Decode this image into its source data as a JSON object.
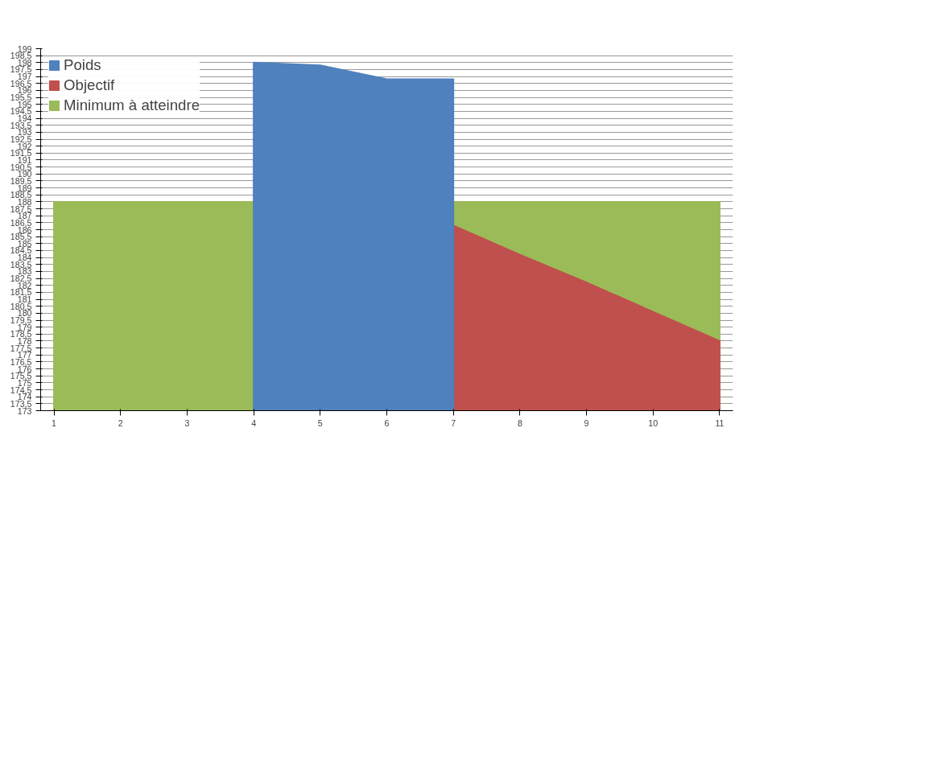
{
  "chart_data": {
    "type": "area",
    "categories": [
      "1",
      "2",
      "3",
      "4",
      "5",
      "6",
      "7",
      "8",
      "9",
      "10",
      "11"
    ],
    "series": [
      {
        "name": "Poids",
        "color": "#4f81bd",
        "values": [
          null,
          null,
          null,
          198,
          197.8,
          196.8,
          196.8,
          null,
          null,
          null,
          null
        ]
      },
      {
        "name": "Objectif",
        "color": "#c0504d",
        "values": [
          null,
          null,
          null,
          null,
          null,
          null,
          186.3,
          184.2,
          182.2,
          180.1,
          178
        ]
      },
      {
        "name": "Minimum à atteindre",
        "color": "#9bbb59",
        "values": [
          188,
          188,
          188,
          188,
          null,
          null,
          188,
          188,
          188,
          188,
          188
        ]
      }
    ],
    "ylim": [
      173,
      199
    ],
    "yticks": [
      173,
      {
        "value": 173.5,
        "label": "173,5"
      },
      174,
      {
        "value": 174.5,
        "label": "174,5"
      },
      175,
      {
        "value": 175.5,
        "label": "175,5"
      },
      176,
      {
        "value": 176.5,
        "label": "176,5"
      },
      177,
      {
        "value": 177.5,
        "label": "177,5"
      },
      178,
      {
        "value": 178.5,
        "label": "178,5"
      },
      179,
      {
        "value": 179.5,
        "label": "179,5"
      },
      180,
      {
        "value": 180.5,
        "label": "180,5"
      },
      181,
      {
        "value": 181.5,
        "label": "181,5"
      },
      182,
      {
        "value": 182.5,
        "label": "182,5"
      },
      183,
      {
        "value": 183.5,
        "label": "183,5"
      },
      184,
      {
        "value": 184.5,
        "label": "184,5"
      },
      185,
      {
        "value": 185.5,
        "label": "185,5"
      },
      186,
      {
        "value": 186.5,
        "label": "186,5"
      },
      187,
      {
        "value": 187.5,
        "label": "187,5"
      },
      188,
      {
        "value": 188.5,
        "label": "188,5"
      },
      189,
      {
        "value": 189.5,
        "label": "189,5"
      },
      190,
      {
        "value": 190.5,
        "label": "190,5"
      },
      191,
      {
        "value": 191.5,
        "label": "191,5"
      },
      192,
      {
        "value": 192.5,
        "label": "192,5"
      },
      193,
      {
        "value": 193.5,
        "label": "193,5"
      },
      194,
      {
        "value": 194.5,
        "label": "194,5"
      },
      195,
      {
        "value": 195.5,
        "label": "195,5"
      },
      196,
      {
        "value": 196.5,
        "label": "196,5"
      },
      197,
      {
        "value": 197.5,
        "label": "197,5"
      },
      198,
      {
        "value": 198.5,
        "label": "198,5"
      },
      199
    ],
    "grid": "y",
    "legend": "top left"
  }
}
